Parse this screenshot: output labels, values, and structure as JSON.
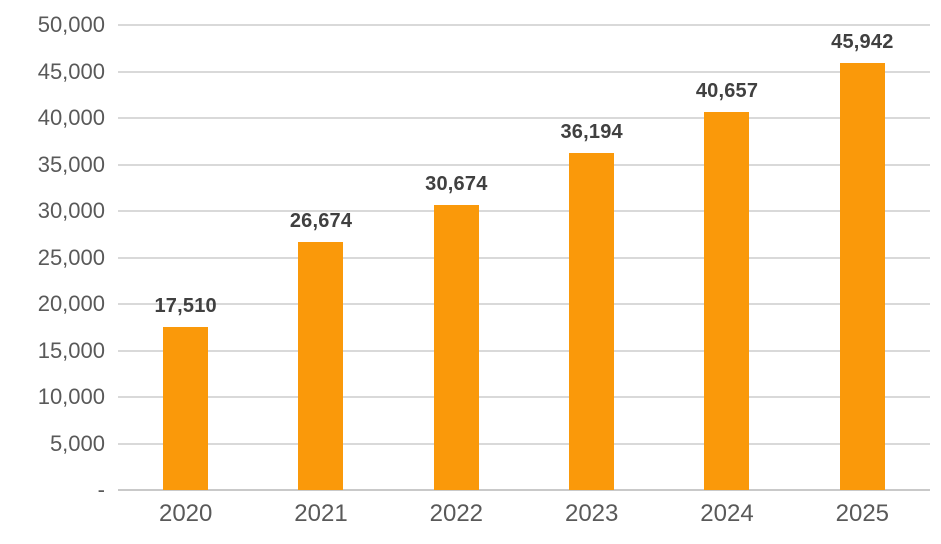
{
  "chart_data": {
    "type": "bar",
    "title": "",
    "xlabel": "",
    "ylabel": "",
    "categories": [
      "2020",
      "2021",
      "2022",
      "2023",
      "2024",
      "2025"
    ],
    "values": [
      17510,
      26674,
      30674,
      36194,
      40657,
      45942
    ],
    "data_labels": [
      "17,510",
      "26,674",
      "30,674",
      "36,194",
      "40,657",
      "45,942"
    ],
    "ylim": [
      0,
      50000
    ],
    "y_ticks": [
      {
        "value": 0,
        "label": "-"
      },
      {
        "value": 5000,
        "label": "5,000"
      },
      {
        "value": 10000,
        "label": "10,000"
      },
      {
        "value": 15000,
        "label": "15,000"
      },
      {
        "value": 20000,
        "label": "20,000"
      },
      {
        "value": 25000,
        "label": "25,000"
      },
      {
        "value": 30000,
        "label": "30,000"
      },
      {
        "value": 35000,
        "label": "35,000"
      },
      {
        "value": 40000,
        "label": "40,000"
      },
      {
        "value": 45000,
        "label": "45,000"
      },
      {
        "value": 50000,
        "label": "50,000"
      }
    ],
    "grid": "horizontal",
    "legend_position": "none",
    "colors": {
      "bar": "#FA990A",
      "data_label": "#404040",
      "axis_text": "#595959",
      "gridline": "#D9D9D9",
      "background": "#FFFFFF"
    }
  }
}
